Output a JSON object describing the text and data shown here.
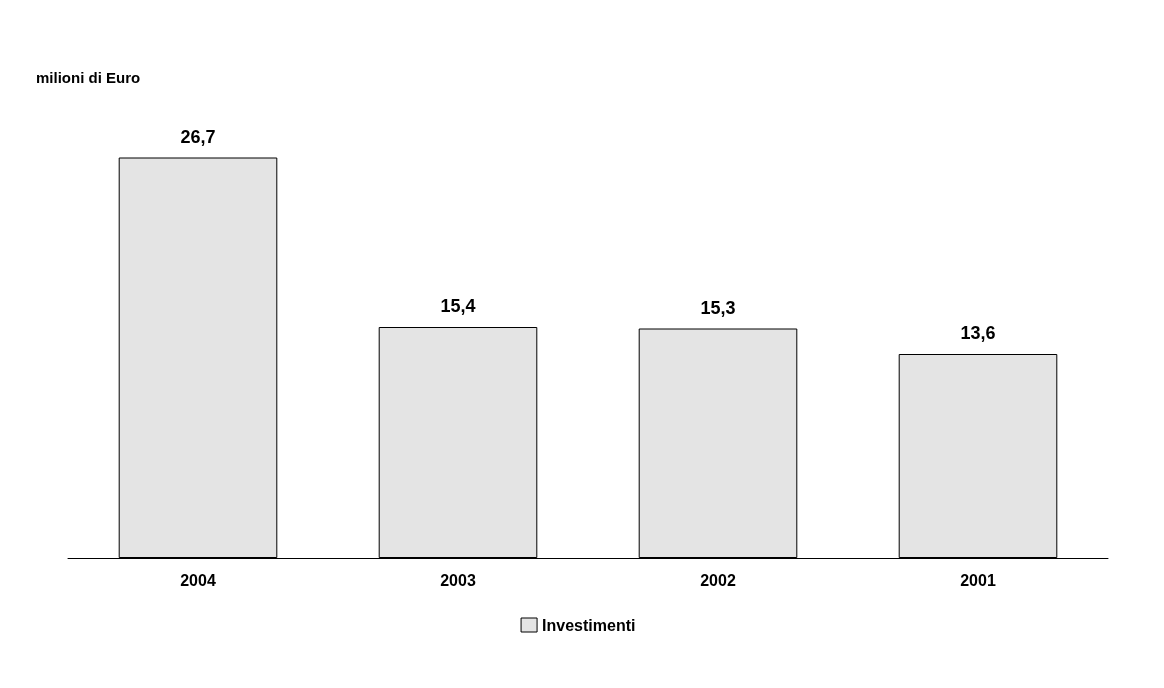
{
  "chart_data": {
    "type": "bar",
    "ylabel": "milioni di Euro",
    "categories": [
      "2004",
      "2003",
      "2002",
      "2001"
    ],
    "series": [
      {
        "name": "Investimenti",
        "color": "#e4e4e4",
        "values": [
          26.7,
          15.4,
          15.3,
          13.6
        ],
        "value_labels": [
          "26,7",
          "15,4",
          "15,3",
          "13,6"
        ]
      }
    ],
    "legend": "bottom"
  }
}
